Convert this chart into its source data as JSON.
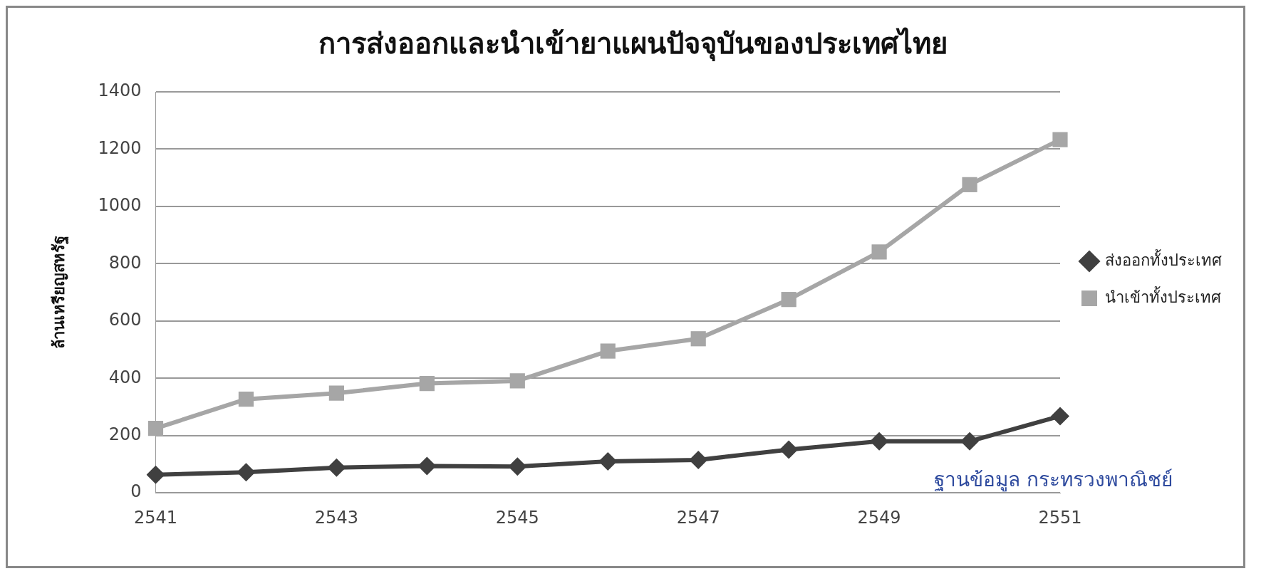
{
  "chart_data": {
    "type": "line",
    "title": "การส่งออกและนำเข้ายาแผนปัจจุบันของประเทศไทย",
    "ylabel": "ล้านเหรียญสหรัฐ",
    "categories": [
      "2541",
      null,
      "2543",
      null,
      "2545",
      null,
      "2547",
      null,
      "2549",
      null,
      "2551"
    ],
    "series": [
      {
        "name": "ส่งออกทั้งประเทศ",
        "color": "#404040",
        "marker": "diamond",
        "values": [
          63,
          72,
          88,
          94,
          92,
          110,
          115,
          151,
          180,
          180,
          268
        ]
      },
      {
        "name": "นำเข้าทั้งประเทศ",
        "color": "#a6a6a6",
        "marker": "square",
        "values": [
          225,
          327,
          348,
          382,
          391,
          495,
          538,
          675,
          841,
          1076,
          1233
        ]
      }
    ],
    "ylim": [
      0,
      1400
    ],
    "yticks": [
      0,
      200,
      400,
      600,
      800,
      1000,
      1200,
      1400
    ],
    "grid": "y",
    "legend": "right",
    "line_style": "solid",
    "annotations": [
      "ฐานข้อมูล กระทรวงพาณิชย์"
    ]
  }
}
